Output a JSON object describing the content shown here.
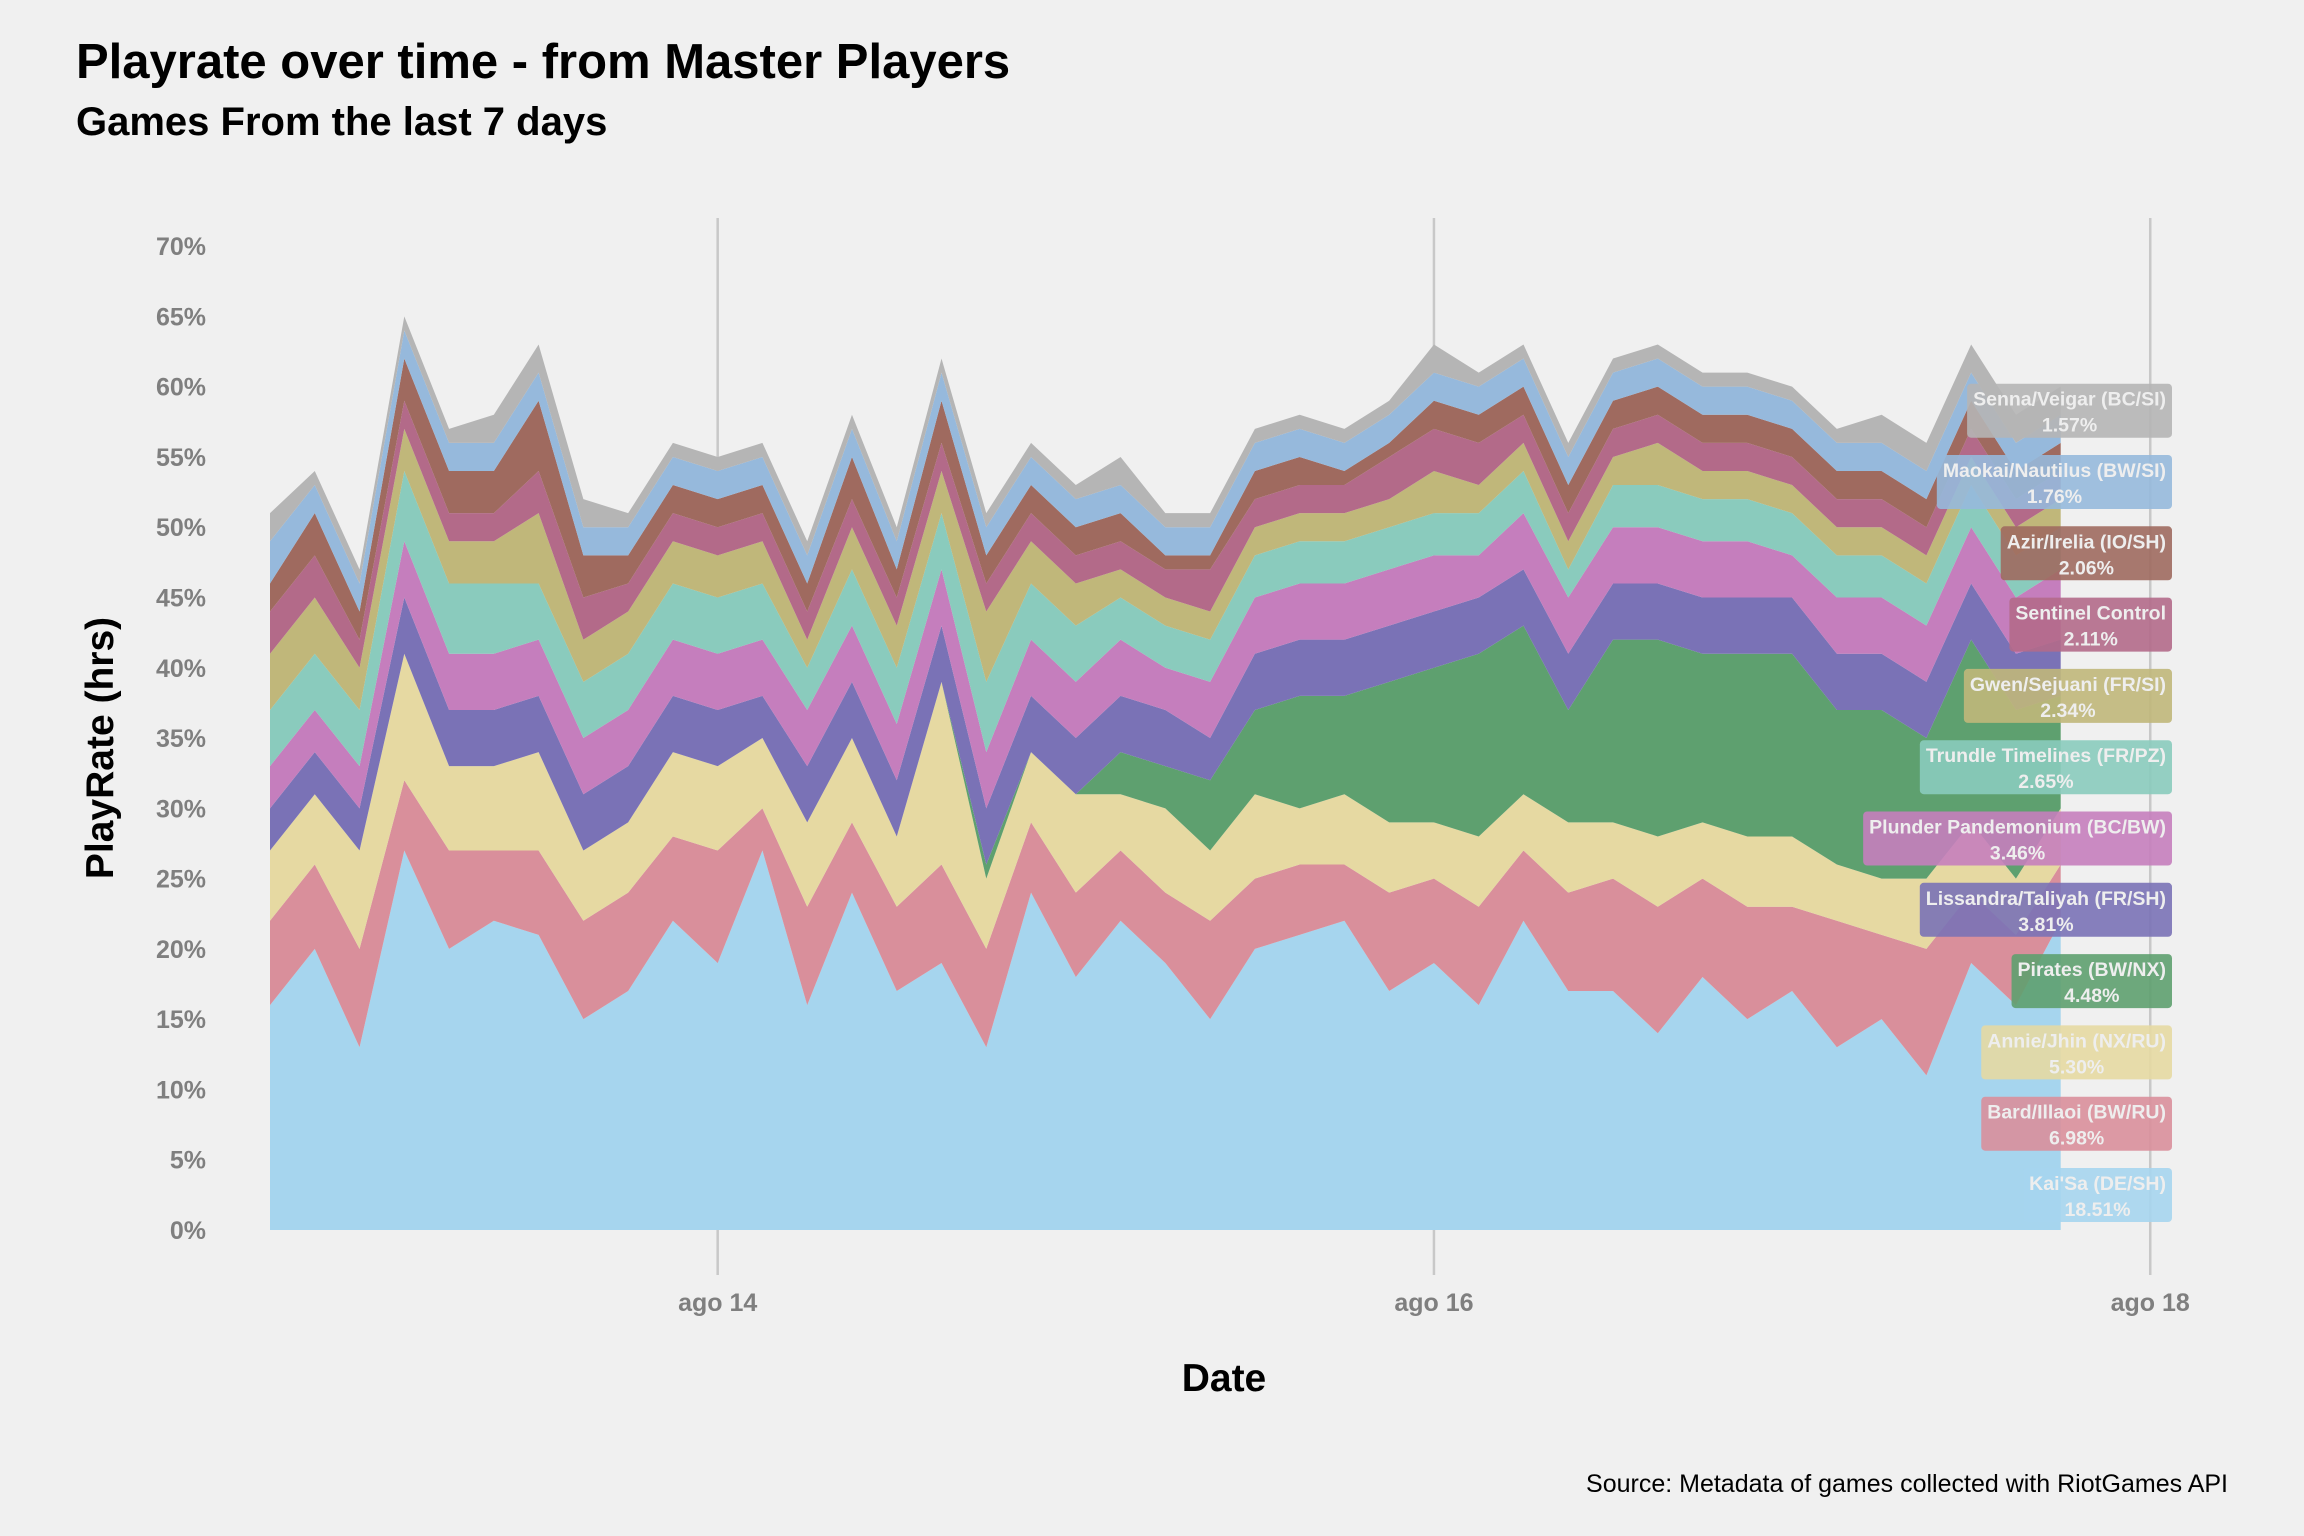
{
  "header": {
    "title": "Playrate over time - from Master Players",
    "subtitle": "Games From the last 7 days",
    "caption": "Source: Metadata of games collected with RiotGames API"
  },
  "chart_data": {
    "type": "area",
    "stacked": true,
    "xlabel": "Date",
    "ylabel": "PlayRate (hrs)",
    "ylim": [
      0,
      0.72
    ],
    "y_ticks": [
      "0%",
      "5%",
      "10%",
      "15%",
      "20%",
      "25%",
      "30%",
      "35%",
      "40%",
      "45%",
      "50%",
      "55%",
      "60%",
      "65%",
      "70%"
    ],
    "x_range": [
      "2021-08-12T18:00",
      "2021-08-18T03:00"
    ],
    "x_ticks": [
      {
        "date": "2021-08-14",
        "label": "ago 14"
      },
      {
        "date": "2021-08-16",
        "label": "ago 16"
      },
      {
        "date": "2021-08-18",
        "label": "ago 18"
      }
    ],
    "grid": {
      "vertical_major": true,
      "horizontal": false
    },
    "x": [
      "2021-08-12T18:00",
      "2021-08-12T21:00",
      "2021-08-13T00:00",
      "2021-08-13T03:00",
      "2021-08-13T06:00",
      "2021-08-13T09:00",
      "2021-08-13T12:00",
      "2021-08-13T15:00",
      "2021-08-13T18:00",
      "2021-08-13T21:00",
      "2021-08-14T00:00",
      "2021-08-14T03:00",
      "2021-08-14T06:00",
      "2021-08-14T09:00",
      "2021-08-14T12:00",
      "2021-08-14T15:00",
      "2021-08-14T18:00",
      "2021-08-14T21:00",
      "2021-08-15T00:00",
      "2021-08-15T03:00",
      "2021-08-15T06:00",
      "2021-08-15T09:00",
      "2021-08-15T12:00",
      "2021-08-15T15:00",
      "2021-08-15T18:00",
      "2021-08-15T21:00",
      "2021-08-16T00:00",
      "2021-08-16T03:00",
      "2021-08-16T06:00",
      "2021-08-16T09:00",
      "2021-08-16T12:00",
      "2021-08-16T15:00",
      "2021-08-16T18:00",
      "2021-08-16T21:00",
      "2021-08-17T00:00",
      "2021-08-17T03:00",
      "2021-08-17T06:00",
      "2021-08-17T09:00",
      "2021-08-17T12:00",
      "2021-08-17T15:00",
      "2021-08-17T18:00"
    ],
    "series": [
      {
        "name": "Kai'Sa (DE/SH)",
        "color": "#a6d5ee",
        "label_pct": "18.51%",
        "values": [
          0.16,
          0.2,
          0.13,
          0.27,
          0.2,
          0.22,
          0.21,
          0.15,
          0.17,
          0.22,
          0.19,
          0.27,
          0.16,
          0.24,
          0.17,
          0.19,
          0.13,
          0.24,
          0.18,
          0.22,
          0.19,
          0.15,
          0.2,
          0.21,
          0.22,
          0.17,
          0.19,
          0.16,
          0.22,
          0.17,
          0.17,
          0.14,
          0.18,
          0.15,
          0.17,
          0.13,
          0.15,
          0.11,
          0.19,
          0.16,
          0.22
        ]
      },
      {
        "name": "Bard/Illaoi (BW/RU)",
        "color": "#d98f9b",
        "label_pct": "6.98%",
        "values": [
          0.06,
          0.06,
          0.07,
          0.05,
          0.07,
          0.05,
          0.06,
          0.07,
          0.07,
          0.06,
          0.08,
          0.03,
          0.07,
          0.05,
          0.06,
          0.07,
          0.07,
          0.05,
          0.06,
          0.05,
          0.05,
          0.07,
          0.05,
          0.05,
          0.04,
          0.07,
          0.06,
          0.07,
          0.05,
          0.07,
          0.08,
          0.09,
          0.07,
          0.08,
          0.06,
          0.09,
          0.06,
          0.09,
          0.05,
          0.05,
          0.04
        ]
      },
      {
        "name": "Annie/Jhin (NX/RU)",
        "color": "#e6d9a2",
        "label_pct": "5.30%",
        "values": [
          0.05,
          0.05,
          0.07,
          0.09,
          0.06,
          0.06,
          0.07,
          0.05,
          0.05,
          0.06,
          0.06,
          0.05,
          0.06,
          0.06,
          0.05,
          0.13,
          0.05,
          0.05,
          0.07,
          0.04,
          0.06,
          0.05,
          0.06,
          0.04,
          0.05,
          0.05,
          0.04,
          0.05,
          0.04,
          0.05,
          0.04,
          0.05,
          0.04,
          0.05,
          0.05,
          0.04,
          0.04,
          0.05,
          0.05,
          0.04,
          0.04
        ]
      },
      {
        "name": "Pirates (BW/NX)",
        "color": "#5ea06f",
        "label_pct": "4.48%",
        "values": [
          0.0,
          0.0,
          0.0,
          0.0,
          0.0,
          0.0,
          0.0,
          0.0,
          0.0,
          0.0,
          0.0,
          0.0,
          0.0,
          0.0,
          0.0,
          0.0,
          0.01,
          0.0,
          0.0,
          0.03,
          0.03,
          0.05,
          0.06,
          0.08,
          0.07,
          0.1,
          0.11,
          0.13,
          0.12,
          0.08,
          0.13,
          0.14,
          0.12,
          0.13,
          0.13,
          0.11,
          0.12,
          0.1,
          0.13,
          0.12,
          0.08
        ]
      },
      {
        "name": "Lissandra/Taliyah (FR/SH)",
        "color": "#7a72b6",
        "label_pct": "3.81%",
        "values": [
          0.03,
          0.03,
          0.03,
          0.04,
          0.04,
          0.04,
          0.04,
          0.04,
          0.04,
          0.04,
          0.04,
          0.03,
          0.04,
          0.04,
          0.04,
          0.04,
          0.04,
          0.04,
          0.04,
          0.04,
          0.04,
          0.03,
          0.04,
          0.04,
          0.04,
          0.04,
          0.04,
          0.04,
          0.04,
          0.04,
          0.04,
          0.04,
          0.04,
          0.04,
          0.04,
          0.04,
          0.04,
          0.04,
          0.04,
          0.04,
          0.04
        ]
      },
      {
        "name": "Plunder Pandemonium (BC/BW)",
        "color": "#c57ebd",
        "label_pct": "3.46%",
        "values": [
          0.03,
          0.03,
          0.03,
          0.04,
          0.04,
          0.04,
          0.04,
          0.04,
          0.04,
          0.04,
          0.04,
          0.04,
          0.04,
          0.04,
          0.04,
          0.04,
          0.04,
          0.04,
          0.04,
          0.04,
          0.03,
          0.04,
          0.04,
          0.04,
          0.04,
          0.04,
          0.04,
          0.03,
          0.04,
          0.04,
          0.04,
          0.04,
          0.04,
          0.04,
          0.03,
          0.04,
          0.04,
          0.04,
          0.04,
          0.04,
          0.05
        ]
      },
      {
        "name": "Trundle Timelines (FR/PZ)",
        "color": "#8acbbd",
        "label_pct": "2.65%",
        "values": [
          0.04,
          0.04,
          0.04,
          0.05,
          0.05,
          0.05,
          0.04,
          0.04,
          0.04,
          0.04,
          0.04,
          0.04,
          0.03,
          0.04,
          0.04,
          0.04,
          0.05,
          0.04,
          0.04,
          0.03,
          0.03,
          0.03,
          0.03,
          0.03,
          0.03,
          0.03,
          0.03,
          0.03,
          0.03,
          0.02,
          0.03,
          0.03,
          0.03,
          0.03,
          0.03,
          0.03,
          0.03,
          0.03,
          0.03,
          0.03,
          0.03
        ]
      },
      {
        "name": "Gwen/Sejuani (FR/SI)",
        "color": "#c0b77a",
        "label_pct": "2.34%",
        "values": [
          0.04,
          0.04,
          0.03,
          0.03,
          0.03,
          0.03,
          0.05,
          0.03,
          0.03,
          0.03,
          0.03,
          0.03,
          0.02,
          0.03,
          0.03,
          0.03,
          0.05,
          0.03,
          0.03,
          0.02,
          0.02,
          0.02,
          0.02,
          0.02,
          0.02,
          0.02,
          0.03,
          0.02,
          0.02,
          0.02,
          0.02,
          0.03,
          0.02,
          0.02,
          0.02,
          0.02,
          0.02,
          0.02,
          0.02,
          0.02,
          0.02
        ]
      },
      {
        "name": "Sentinel Control",
        "color": "#b36a89",
        "label_pct": "2.11%",
        "values": [
          0.03,
          0.03,
          0.02,
          0.02,
          0.02,
          0.02,
          0.03,
          0.03,
          0.02,
          0.02,
          0.02,
          0.02,
          0.02,
          0.02,
          0.02,
          0.02,
          0.02,
          0.02,
          0.02,
          0.02,
          0.02,
          0.03,
          0.02,
          0.02,
          0.02,
          0.03,
          0.03,
          0.03,
          0.02,
          0.02,
          0.02,
          0.02,
          0.02,
          0.02,
          0.02,
          0.02,
          0.02,
          0.02,
          0.02,
          0.02,
          0.02
        ]
      },
      {
        "name": "Azir/Irelia (IO/SH)",
        "color": "#9f6a5f",
        "label_pct": "2.06%",
        "values": [
          0.02,
          0.03,
          0.02,
          0.03,
          0.03,
          0.03,
          0.05,
          0.03,
          0.02,
          0.02,
          0.02,
          0.02,
          0.02,
          0.03,
          0.02,
          0.03,
          0.02,
          0.02,
          0.02,
          0.02,
          0.01,
          0.01,
          0.02,
          0.02,
          0.01,
          0.01,
          0.02,
          0.02,
          0.02,
          0.02,
          0.02,
          0.02,
          0.02,
          0.02,
          0.02,
          0.02,
          0.02,
          0.02,
          0.02,
          0.02,
          0.02
        ]
      },
      {
        "name": "Maokai/Nautilus (BW/SI)",
        "color": "#96b9dc",
        "label_pct": "1.76%",
        "values": [
          0.03,
          0.02,
          0.02,
          0.02,
          0.02,
          0.02,
          0.02,
          0.02,
          0.02,
          0.02,
          0.02,
          0.02,
          0.02,
          0.02,
          0.02,
          0.02,
          0.02,
          0.02,
          0.02,
          0.02,
          0.02,
          0.02,
          0.02,
          0.02,
          0.02,
          0.02,
          0.02,
          0.02,
          0.02,
          0.02,
          0.02,
          0.02,
          0.02,
          0.02,
          0.02,
          0.02,
          0.02,
          0.02,
          0.02,
          0.02,
          0.02
        ]
      },
      {
        "name": "Senna/Veigar (BC/SI)",
        "color": "#b5b5b5",
        "label_pct": "1.57%",
        "values": [
          0.02,
          0.01,
          0.01,
          0.01,
          0.01,
          0.02,
          0.02,
          0.02,
          0.01,
          0.01,
          0.01,
          0.01,
          0.01,
          0.01,
          0.01,
          0.01,
          0.01,
          0.01,
          0.01,
          0.02,
          0.01,
          0.01,
          0.01,
          0.01,
          0.01,
          0.01,
          0.02,
          0.01,
          0.01,
          0.01,
          0.01,
          0.01,
          0.01,
          0.01,
          0.01,
          0.01,
          0.02,
          0.02,
          0.02,
          0.02,
          0.02
        ]
      }
    ]
  }
}
